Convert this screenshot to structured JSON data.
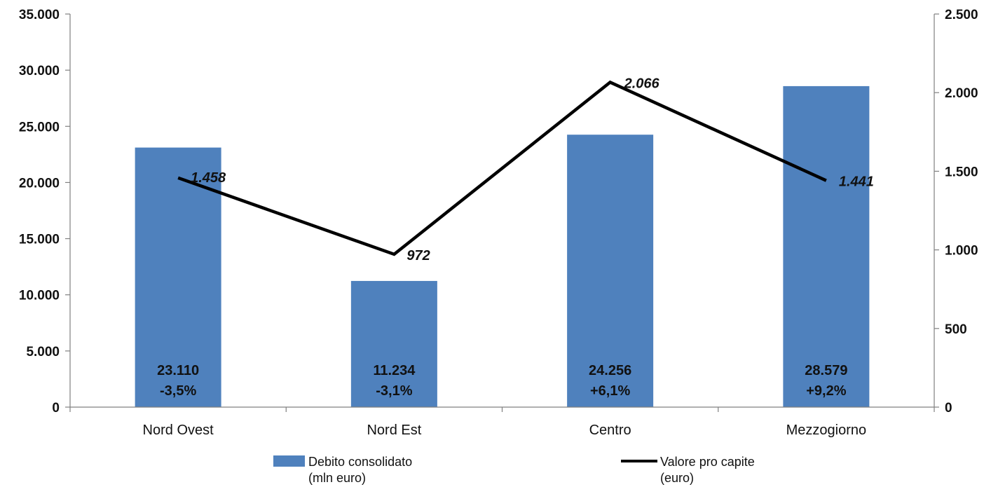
{
  "chart_data": {
    "type": "bar+line",
    "title": "",
    "categories": [
      "Nord Ovest",
      "Nord Est",
      "Centro",
      "Mezzogiorno"
    ],
    "series": [
      {
        "name": "Debito consolidato (mln euro)",
        "legend_lines": [
          "Debito consolidato",
          "(mln euro)"
        ],
        "kind": "bar",
        "axis": "left",
        "color": "#4f81bd",
        "values": [
          23110,
          11234,
          24256,
          28579
        ],
        "value_labels": [
          "23.110",
          "11.234",
          "24.256",
          "28.579"
        ],
        "change_labels": [
          "-3,5%",
          "-3,1%",
          "+6,1%",
          "+9,2%"
        ]
      },
      {
        "name": "Valore pro capite (euro)",
        "legend_lines": [
          "Valore pro capite",
          "(euro)"
        ],
        "kind": "line",
        "axis": "right",
        "color": "#000000",
        "values": [
          1458,
          972,
          2066,
          1441
        ],
        "value_labels": [
          "1.458",
          "972",
          "2.066",
          "1.441"
        ]
      }
    ],
    "y_left": {
      "lim": [
        0,
        35000
      ],
      "ticks": [
        0,
        5000,
        10000,
        15000,
        20000,
        25000,
        30000,
        35000
      ],
      "tick_labels": [
        "0",
        "5.000",
        "10.000",
        "15.000",
        "20.000",
        "25.000",
        "30.000",
        "35.000"
      ]
    },
    "y_right": {
      "lim": [
        0,
        2500
      ],
      "ticks": [
        0,
        500,
        1000,
        1500,
        2000,
        2500
      ],
      "tick_labels": [
        "0",
        "500",
        "1.000",
        "1.500",
        "2.000",
        "2.500"
      ]
    },
    "grid": false,
    "legend_position": "bottom"
  }
}
